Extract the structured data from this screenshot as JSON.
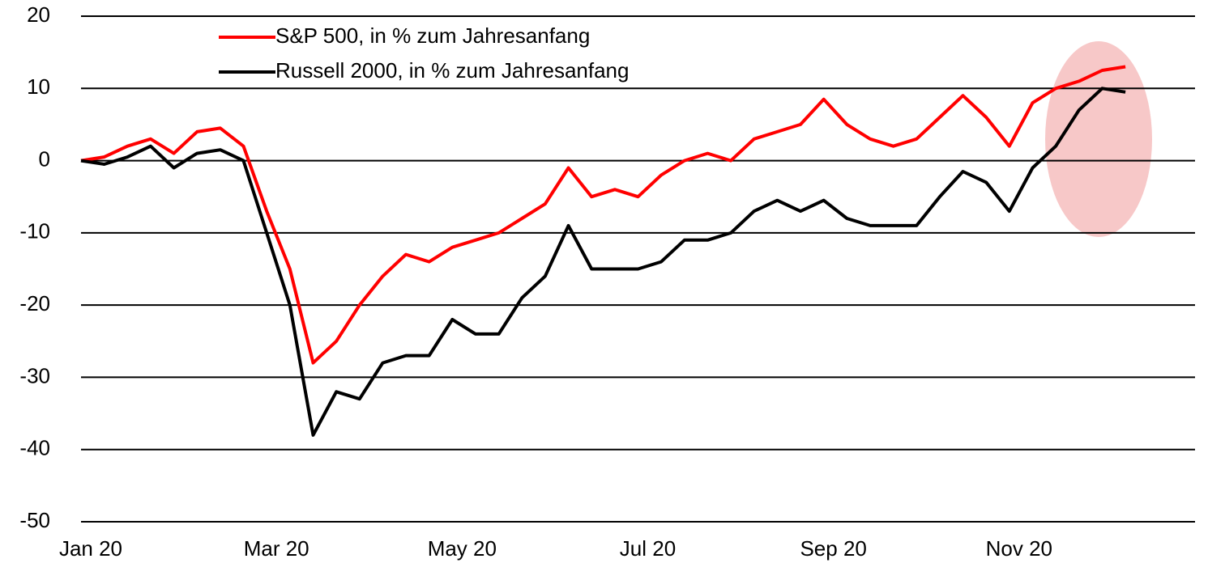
{
  "chart_data": {
    "type": "line",
    "categories": [
      "Jan 20",
      null,
      null,
      null,
      null,
      null,
      null,
      null,
      "Mar 20",
      null,
      null,
      null,
      null,
      null,
      null,
      null,
      "May 20",
      null,
      null,
      null,
      null,
      null,
      null,
      null,
      "Jul 20",
      null,
      null,
      null,
      null,
      null,
      null,
      null,
      "Sep 20",
      null,
      null,
      null,
      null,
      null,
      null,
      null,
      "Nov 20",
      null,
      null,
      null,
      null,
      null,
      null,
      null
    ],
    "series": [
      {
        "name": "S&P 500, in % zum Jahresanfang",
        "color": "#ff0000",
        "values": [
          0,
          0.5,
          2,
          3,
          1,
          4,
          4.5,
          2,
          -7,
          -15,
          -28,
          -25,
          -20,
          -16,
          -13,
          -14,
          -12,
          -11,
          -10,
          -8,
          -6,
          -1,
          -5,
          -4,
          -5,
          -2,
          0,
          1,
          0,
          3,
          4,
          5,
          8.5,
          5,
          3,
          2,
          3,
          6,
          9,
          6,
          2,
          8,
          10,
          11,
          12.5,
          13,
          null,
          null
        ]
      },
      {
        "name": "Russell 2000, in % zum Jahresanfang",
        "color": "#000000",
        "values": [
          0,
          -0.5,
          0.5,
          2,
          -1,
          1,
          1.5,
          0,
          -10,
          -20,
          -38,
          -32,
          -33,
          -28,
          -27,
          -27,
          -22,
          -24,
          -24,
          -19,
          -16,
          -9,
          -15,
          -15,
          -15,
          -14,
          -11,
          -11,
          -10,
          -7,
          -5.5,
          -7,
          -5.5,
          -8,
          -9,
          -9,
          -9,
          -5,
          -1.5,
          -3,
          -7,
          -1,
          2,
          7,
          10,
          9.5,
          null,
          null
        ]
      }
    ],
    "ylim": [
      -50,
      20
    ],
    "yticks": [
      -50,
      -40,
      -30,
      -20,
      -10,
      0,
      10,
      20
    ],
    "grid": true
  }
}
